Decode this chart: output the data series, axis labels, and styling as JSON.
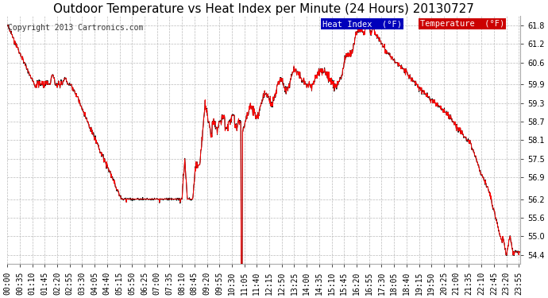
{
  "title": "Outdoor Temperature vs Heat Index per Minute (24 Hours) 20130727",
  "copyright": "Copyright 2013 Cartronics.com",
  "ylim": [
    54.1,
    62.1
  ],
  "yticks": [
    54.4,
    55.0,
    55.6,
    56.2,
    56.9,
    57.5,
    58.1,
    58.7,
    59.3,
    59.9,
    60.6,
    61.2,
    61.8
  ],
  "line_color_temp": "#ff0000",
  "line_color_heat": "#000000",
  "legend_heat_bg": "#0000bb",
  "legend_temp_bg": "#cc0000",
  "legend_heat_label": "Heat Index  (°F)",
  "legend_temp_label": "Temperature  (°F)",
  "bg_color": "#ffffff",
  "grid_color": "#bbbbbb",
  "title_fontsize": 11,
  "copyright_fontsize": 7,
  "tick_fontsize": 7,
  "n_minutes": 1440,
  "figwidth": 6.9,
  "figheight": 3.75,
  "dpi": 100
}
